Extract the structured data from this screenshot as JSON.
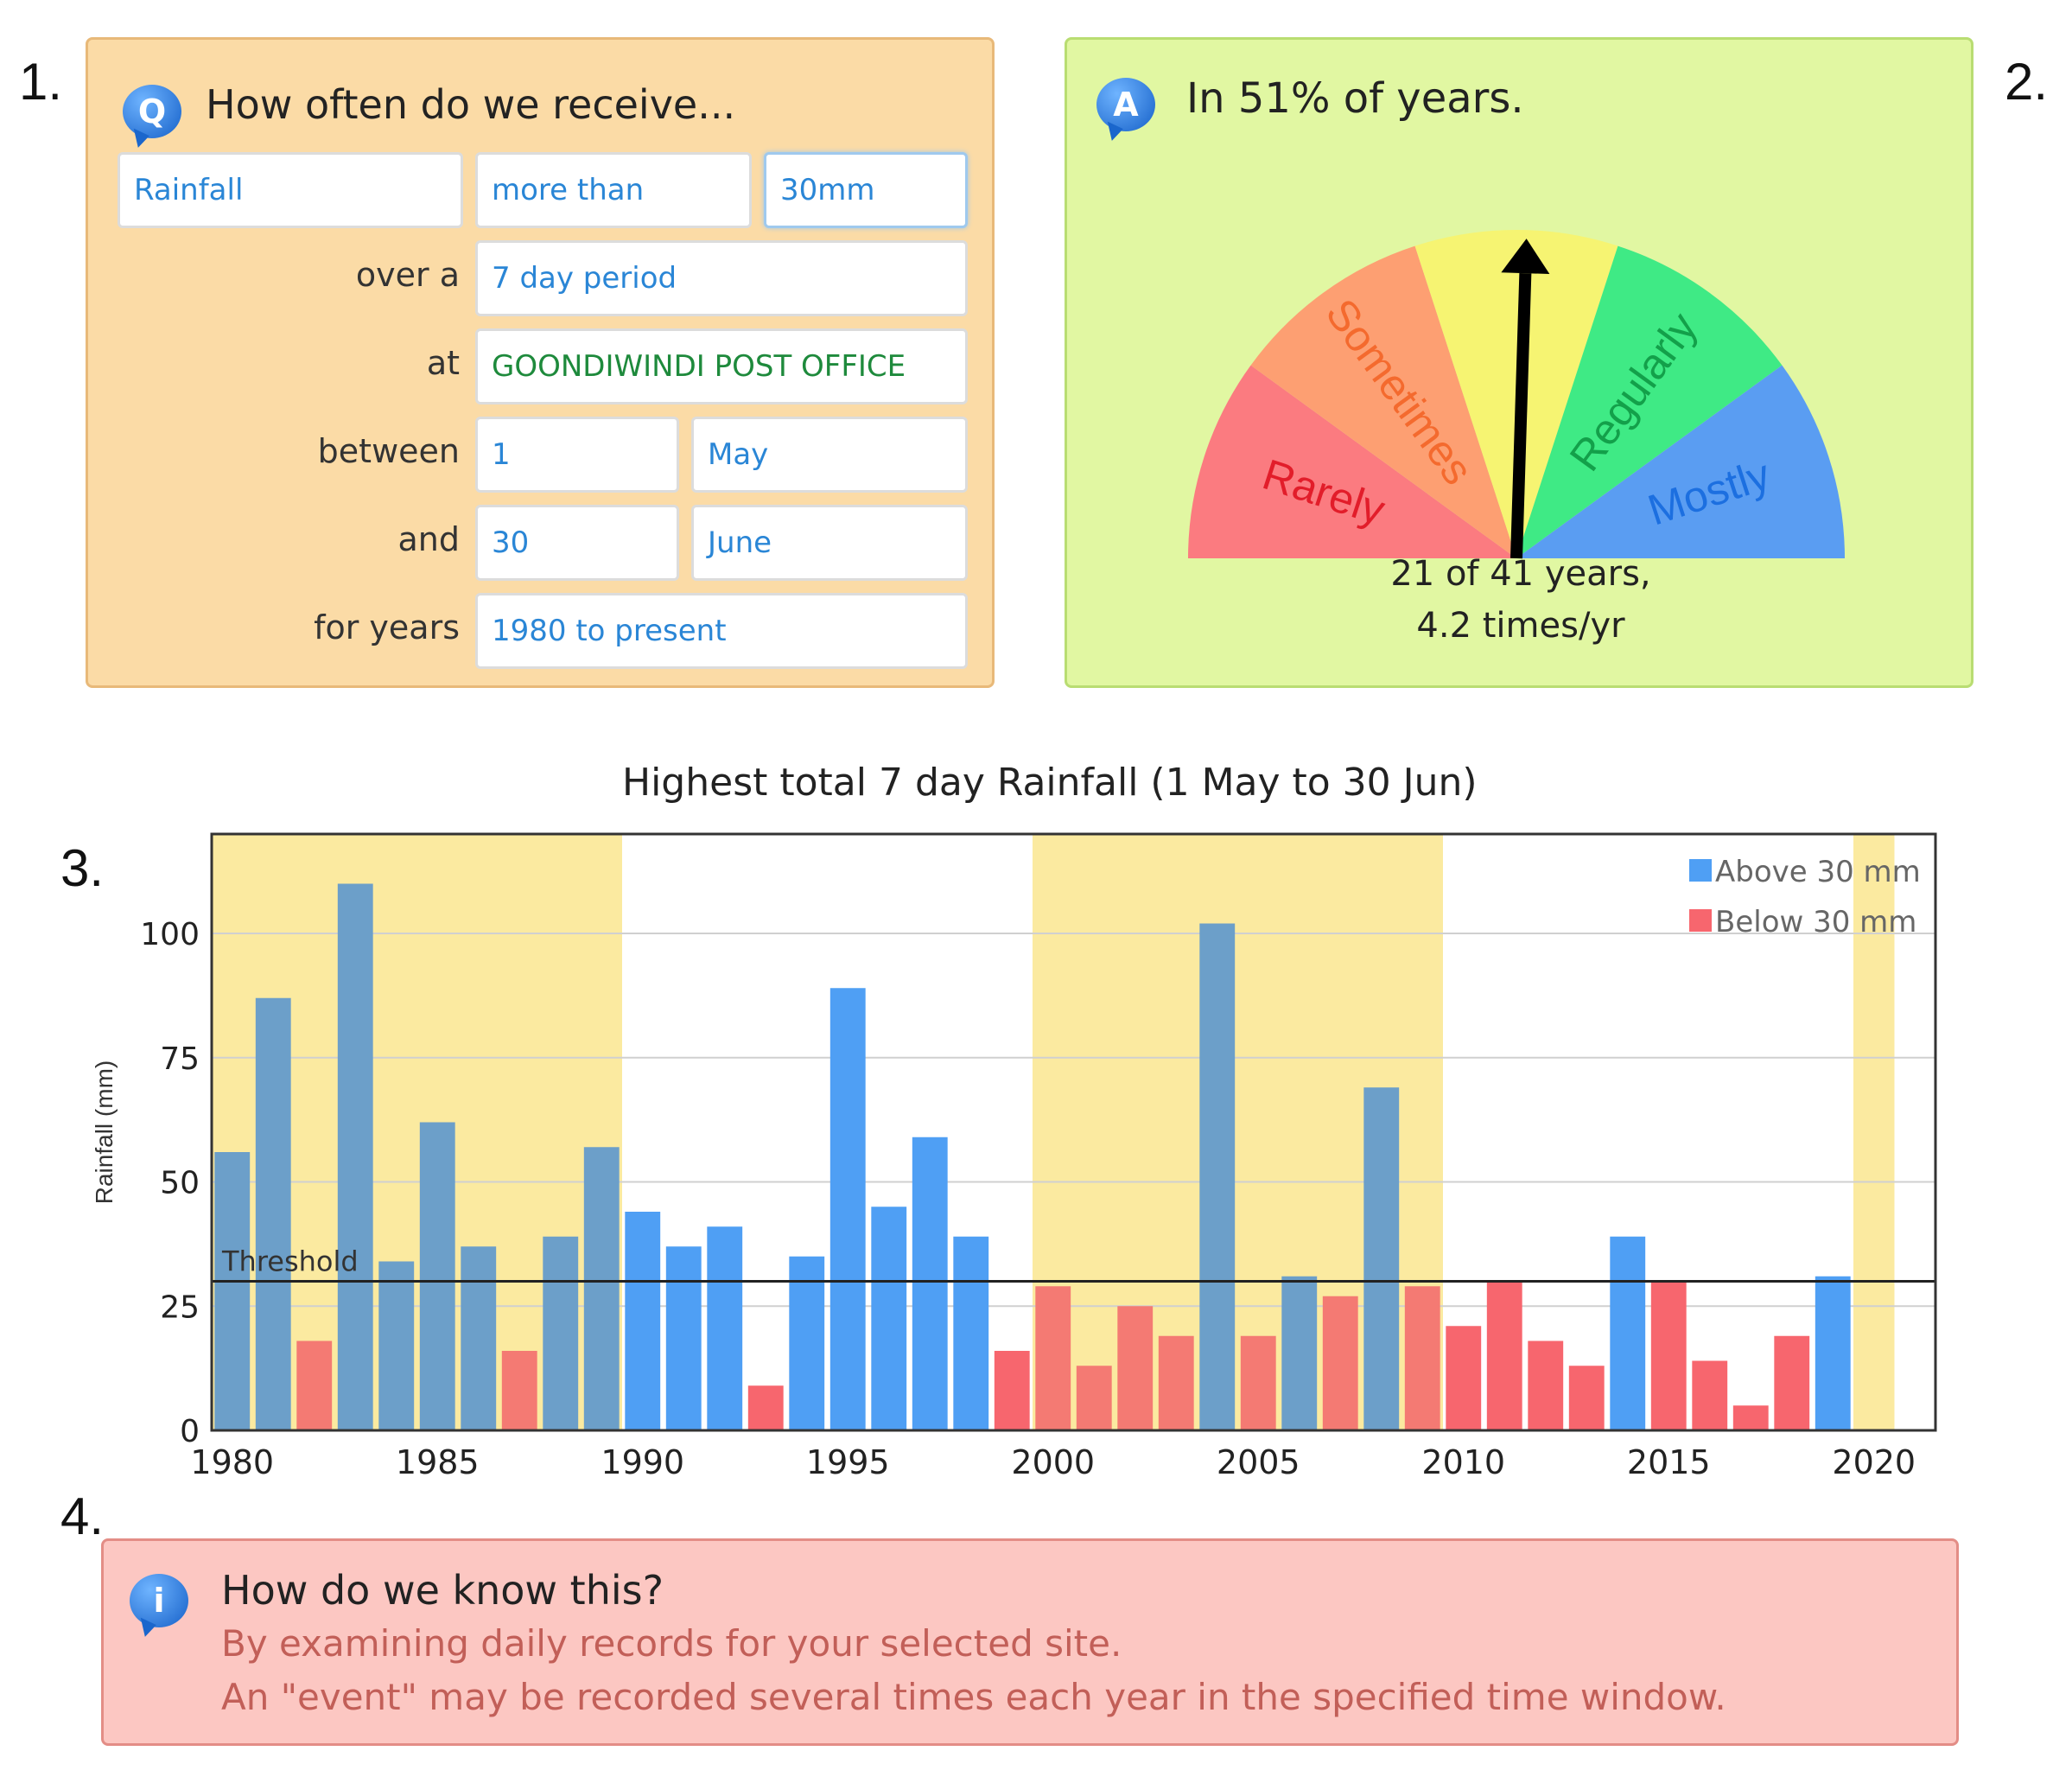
{
  "markers": {
    "one": "1.",
    "two": "2.",
    "three": "3.",
    "four": "4."
  },
  "question": {
    "icon": "Q",
    "title": "How often do we receive...",
    "variable": "Rainfall",
    "comparison": "more than",
    "threshold": "30mm",
    "over_label": "over a",
    "period": "7 day period",
    "at_label": "at",
    "site": "GOONDIWINDI POST OFFICE",
    "between_label": "between",
    "start_day": "1",
    "start_month": "May",
    "and_label": "and",
    "end_day": "30",
    "end_month": "June",
    "years_label": "for years",
    "years": "1980 to present"
  },
  "answer": {
    "icon": "A",
    "title": "In 51% of years.",
    "gauge_labels": [
      "Rarely",
      "Sometimes",
      "...",
      "Regularly",
      "Mostly"
    ],
    "gauge_colors": [
      "#fb7b80",
      "#fd9f72",
      "#f6f472",
      "#3fea85",
      "#5a9df2"
    ],
    "gauge_value_fraction": 0.51,
    "summary_line1": "21 of 41 years,",
    "summary_line2": "4.2 times/yr"
  },
  "chart_data": {
    "type": "bar",
    "title": "Highest total 7 day Rainfall (1 May to 30 Jun)",
    "ylabel": "Rainfall (mm)",
    "xlabel": "",
    "ylim": [
      0,
      120
    ],
    "yticks": [
      0,
      25,
      50,
      75,
      100
    ],
    "xticks": [
      1980,
      1985,
      1990,
      1995,
      2000,
      2005,
      2010,
      2015,
      2020
    ],
    "threshold": {
      "value": 30,
      "label": "Threshold"
    },
    "shaded_ranges": [
      [
        1980,
        1990
      ],
      [
        2000,
        2010
      ],
      [
        2020,
        2021
      ]
    ],
    "shade_color": "#fbeaa0",
    "legend": [
      {
        "name": "Above 30 mm",
        "color": "#4f9ff4"
      },
      {
        "name": "Below 30 mm",
        "color": "#f7666e"
      }
    ],
    "years": [
      1980,
      1981,
      1982,
      1983,
      1984,
      1985,
      1986,
      1987,
      1988,
      1989,
      1990,
      1991,
      1992,
      1993,
      1994,
      1995,
      1996,
      1997,
      1998,
      1999,
      2000,
      2001,
      2002,
      2003,
      2004,
      2005,
      2006,
      2007,
      2008,
      2009,
      2010,
      2011,
      2012,
      2013,
      2014,
      2015,
      2016,
      2017,
      2018,
      2019,
      2020
    ],
    "values": [
      56,
      87,
      18,
      110,
      34,
      62,
      37,
      16,
      39,
      57,
      44,
      37,
      41,
      9,
      35,
      89,
      45,
      59,
      39,
      16,
      29,
      13,
      25,
      19,
      102,
      19,
      31,
      27,
      69,
      29,
      21,
      30,
      18,
      13,
      39,
      30,
      14,
      5,
      19,
      31,
      0
    ]
  },
  "info": {
    "icon": "i",
    "title": "How do we know this?",
    "line1": "By examining daily records for your selected site.",
    "line2": "An \"event\" may be recorded several times each year in the specified time window."
  }
}
